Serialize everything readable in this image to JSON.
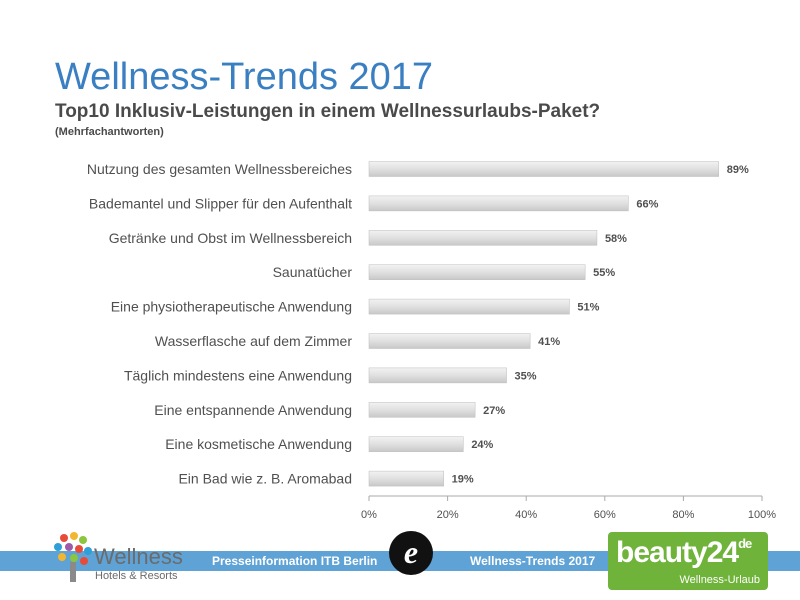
{
  "header": {
    "title": "Wellness-Trends 2017",
    "subtitle": "Top10 Inklusiv-Leistungen in einem Wellnessurlaubs-Paket?",
    "note": "(Mehrfachantworten)"
  },
  "chart_data": {
    "type": "bar",
    "orientation": "horizontal",
    "categories": [
      "Nutzung des gesamten Wellnessbereiches",
      "Bademantel und Slipper für den Aufenthalt",
      "Getränke und Obst im Wellnessbereich",
      "Saunatücher",
      "Eine physiotherapeutische  Anwendung",
      "Wasserflasche auf dem Zimmer",
      "Täglich mindestens eine Anwendung",
      "Eine entspannende Anwendung",
      "Eine kosmetische Anwendung",
      "Ein Bad wie z. B. Aromabad"
    ],
    "values": [
      89,
      66,
      58,
      55,
      51,
      41,
      35,
      27,
      24,
      19
    ],
    "value_labels": [
      "89%",
      "66%",
      "58%",
      "55%",
      "51%",
      "41%",
      "35%",
      "27%",
      "24%",
      "19%"
    ],
    "xlim": [
      0,
      100
    ],
    "x_ticks": [
      "0%",
      "20%",
      "40%",
      "60%",
      "80%",
      "100%"
    ],
    "grid": false,
    "bar_color": "#e2e2e2"
  },
  "footer": {
    "left_brand": "Wellness",
    "left_sub": "Hotels & Resorts",
    "press_text": "Presseinformation ITB Berlin",
    "e_logo": "e",
    "center_text": "Wellness-Trends 2017",
    "right_brand": "beauty24",
    "right_sup": "de",
    "right_sub": "Wellness-Urlaub",
    "band_color": "#5ea2d6",
    "brand_green": "#6fb33a"
  }
}
